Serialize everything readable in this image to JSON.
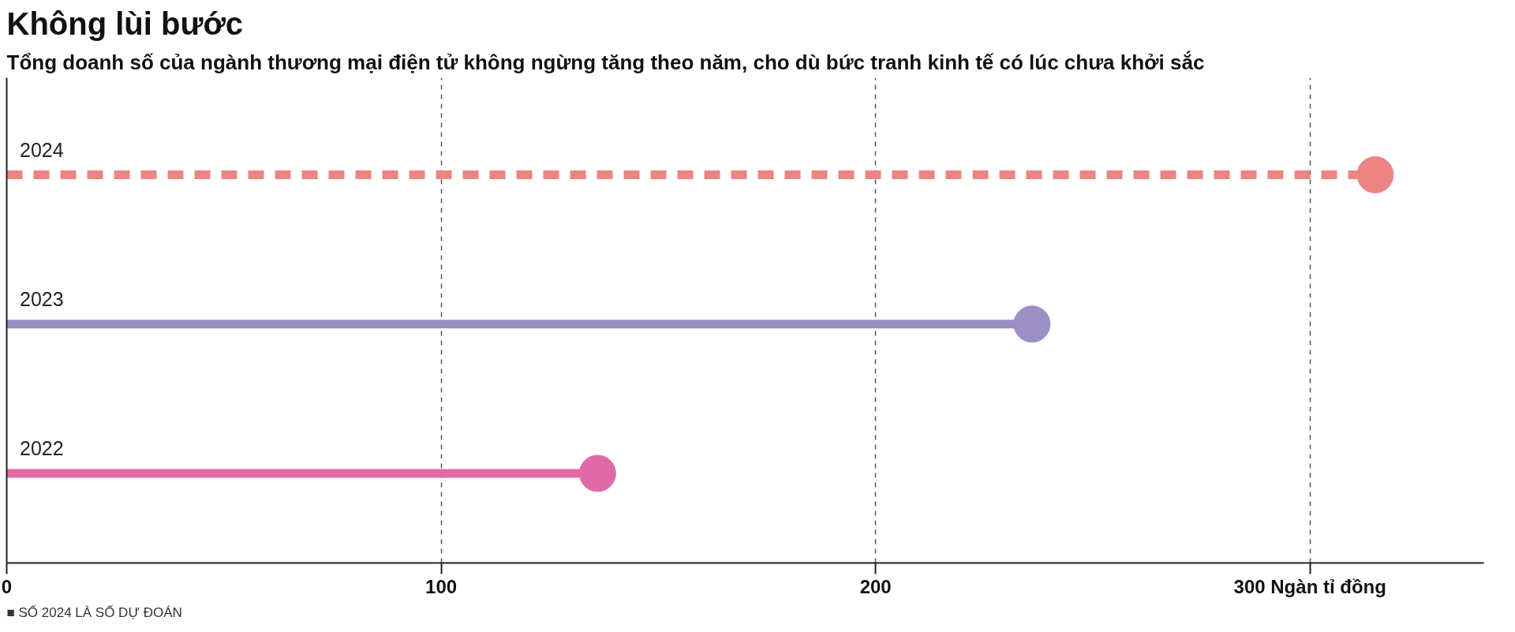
{
  "chart_data": {
    "type": "lollipop",
    "orientation": "horizontal",
    "title": "Không lùi bước",
    "subtitle": "Tổng doanh số của ngành thương mại điện tử không ngừng tăng theo năm, cho dù bức tranh kinh tế có lúc chưa khởi sắc",
    "categories": [
      "2024",
      "2023",
      "2022"
    ],
    "series": [
      {
        "color": "#ec8484",
        "values": [
          315,
          null,
          null
        ],
        "line_style": "dashed"
      },
      {
        "color": "#9b8fc6",
        "values": [
          null,
          236,
          null
        ],
        "line_style": "solid"
      },
      {
        "color": "#e06aa8",
        "values": [
          null,
          null,
          136
        ],
        "line_style": "solid"
      }
    ],
    "xlim": [
      0,
      340
    ],
    "xticks": [
      0,
      100,
      200,
      {
        "value": 300,
        "label": "300 Ngàn tỉ đồng"
      }
    ],
    "grid": "x",
    "marker": "circle",
    "annotations": [
      "■ SỐ 2024 LÀ SỐ DỰ ĐOÁN"
    ]
  }
}
